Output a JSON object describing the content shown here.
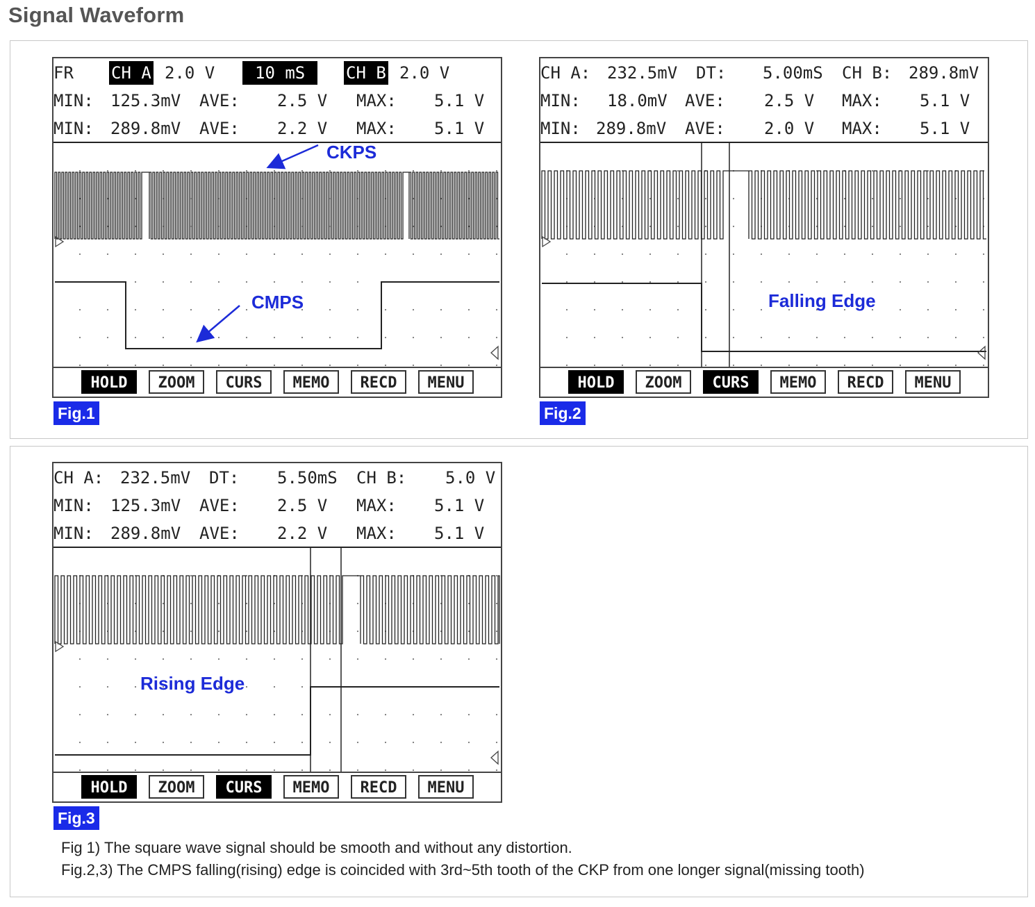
{
  "title": "Signal Waveform",
  "fig1": {
    "label": "Fig.1",
    "header": [
      [
        "FR",
        "CH A",
        "2.0 V",
        "10 mS",
        "CH B",
        "2.0 V"
      ],
      [
        "MIN:",
        "125.3mV",
        "AVE:",
        "2.5 V",
        "MAX:",
        "5.1 V"
      ],
      [
        "MIN:",
        "289.8mV",
        "AVE:",
        "2.2 V",
        "MAX:",
        "5.1 V"
      ]
    ],
    "annotations": {
      "ckps": "CKPS",
      "cmps": "CMPS"
    },
    "buttons": [
      "HOLD",
      "ZOOM",
      "CURS",
      "MEMO",
      "RECD",
      "MENU"
    ],
    "active_buttons": [
      "HOLD"
    ]
  },
  "fig2": {
    "label": "Fig.2",
    "header": [
      [
        "CH A:",
        "232.5mV",
        "DT:",
        "5.00mS",
        "CH B:",
        "289.8mV"
      ],
      [
        "MIN:",
        "18.0mV",
        "AVE:",
        "2.5 V",
        "MAX:",
        "5.1 V"
      ],
      [
        "MIN:",
        "289.8mV",
        "AVE:",
        "2.0 V",
        "MAX:",
        "5.1 V"
      ]
    ],
    "annotations": {
      "edge": "Falling Edge"
    },
    "buttons": [
      "HOLD",
      "ZOOM",
      "CURS",
      "MEMO",
      "RECD",
      "MENU"
    ],
    "active_buttons": [
      "HOLD",
      "CURS"
    ]
  },
  "fig3": {
    "label": "Fig.3",
    "header": [
      [
        "CH A:",
        "232.5mV",
        "DT:",
        "5.50mS",
        "CH B:",
        "5.0 V"
      ],
      [
        "MIN:",
        "125.3mV",
        "AVE:",
        "2.5 V",
        "MAX:",
        "5.1 V"
      ],
      [
        "MIN:",
        "289.8mV",
        "AVE:",
        "2.2 V",
        "MAX:",
        "5.1 V"
      ]
    ],
    "annotations": {
      "edge": "Rising Edge"
    },
    "buttons": [
      "HOLD",
      "ZOOM",
      "CURS",
      "MEMO",
      "RECD",
      "MENU"
    ],
    "active_buttons": [
      "HOLD",
      "CURS"
    ]
  },
  "captions": [
    "Fig 1) The square wave signal should be smooth and without any distortion.",
    "Fig.2,3) The CMPS falling(rising) edge is coincided with 3rd~5th tooth of the CKP from one longer signal(missing tooth)"
  ],
  "colors": {
    "annotation": "#1c2bd8",
    "fig_label_bg": "#1a2be8",
    "title": "#555555"
  }
}
